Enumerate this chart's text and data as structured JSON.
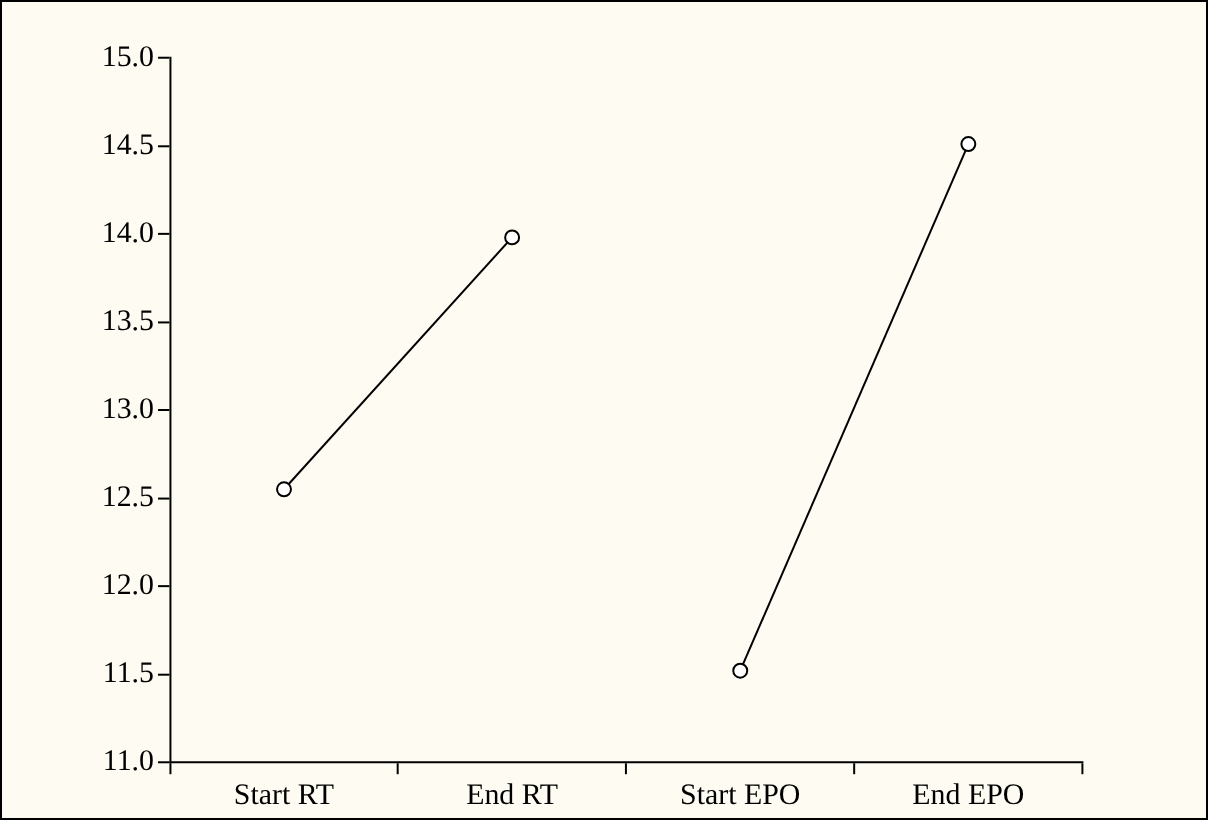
{
  "chart_data": {
    "type": "line",
    "categories": [
      "Start RT",
      "End RT",
      "Start EPO",
      "End EPO"
    ],
    "series": [
      {
        "color": "#000000",
        "values": [
          12.55,
          13.98,
          null,
          null
        ]
      },
      {
        "color": "#000000",
        "values": [
          null,
          null,
          11.52,
          14.51
        ]
      }
    ],
    "ylim": [
      11.0,
      15.0
    ],
    "yticks": [
      {
        "value": 11,
        "label": "11.0"
      },
      {
        "value": 11.5,
        "label": "11.5"
      },
      {
        "value": 12,
        "label": "12.0"
      },
      {
        "value": 12.5,
        "label": "12.5"
      },
      {
        "value": 13,
        "label": "13.0"
      },
      {
        "value": 13.5,
        "label": "13.5"
      },
      {
        "value": 14,
        "label": "14.0"
      },
      {
        "value": 14.5,
        "label": "14.5"
      },
      {
        "value": 15,
        "label": "15.0"
      }
    ],
    "grid": false,
    "legend": false,
    "marker": "circle",
    "line_style": "solid"
  }
}
